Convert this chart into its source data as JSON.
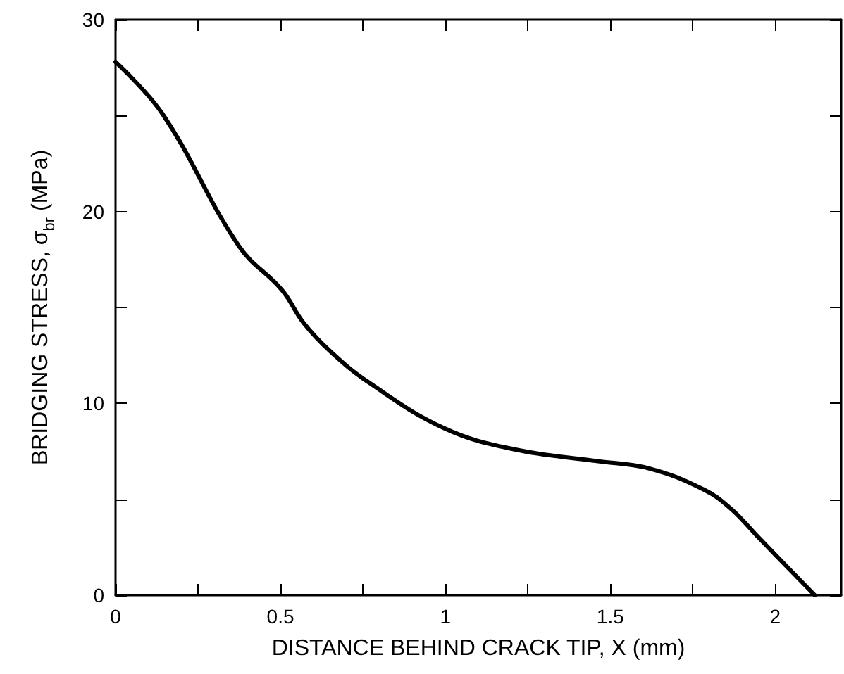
{
  "chart_data": {
    "type": "line",
    "xlabel": "DISTANCE BEHIND CRACK TIP, X (mm)",
    "ylabel": "BRIDGING STRESS, σ$_{br}$ (MPa)",
    "x": [
      0,
      0.144,
      0.374,
      0.505,
      0.57,
      0.652,
      0.767,
      0.997,
      1.21,
      1.455,
      1.62,
      1.784,
      1.866,
      1.95,
      2.12
    ],
    "series": [
      {
        "color": "#000000",
        "values": [
          27.8,
          25.05,
          18.2,
          15.9,
          14.2,
          12.7,
          11.1,
          8.7,
          7.6,
          7.0,
          6.6,
          5.5,
          4.5,
          3.0,
          0
        ]
      }
    ],
    "xlim": [
      0,
      2.2
    ],
    "xticks": [
      0,
      {
        "value": 0.25,
        "label": null
      },
      0.5,
      {
        "value": 0.75,
        "label": null
      },
      1,
      {
        "value": 1.25,
        "label": null
      },
      1.5,
      {
        "value": 1.75,
        "label": null
      },
      2
    ],
    "ylim": [
      0,
      30
    ],
    "yticks": [
      0,
      {
        "value": 5,
        "label": null
      },
      10,
      {
        "value": 15,
        "label": null
      },
      20,
      {
        "value": 25,
        "label": null
      },
      30
    ],
    "grid": false,
    "marker": "none",
    "line_style": "solid"
  }
}
